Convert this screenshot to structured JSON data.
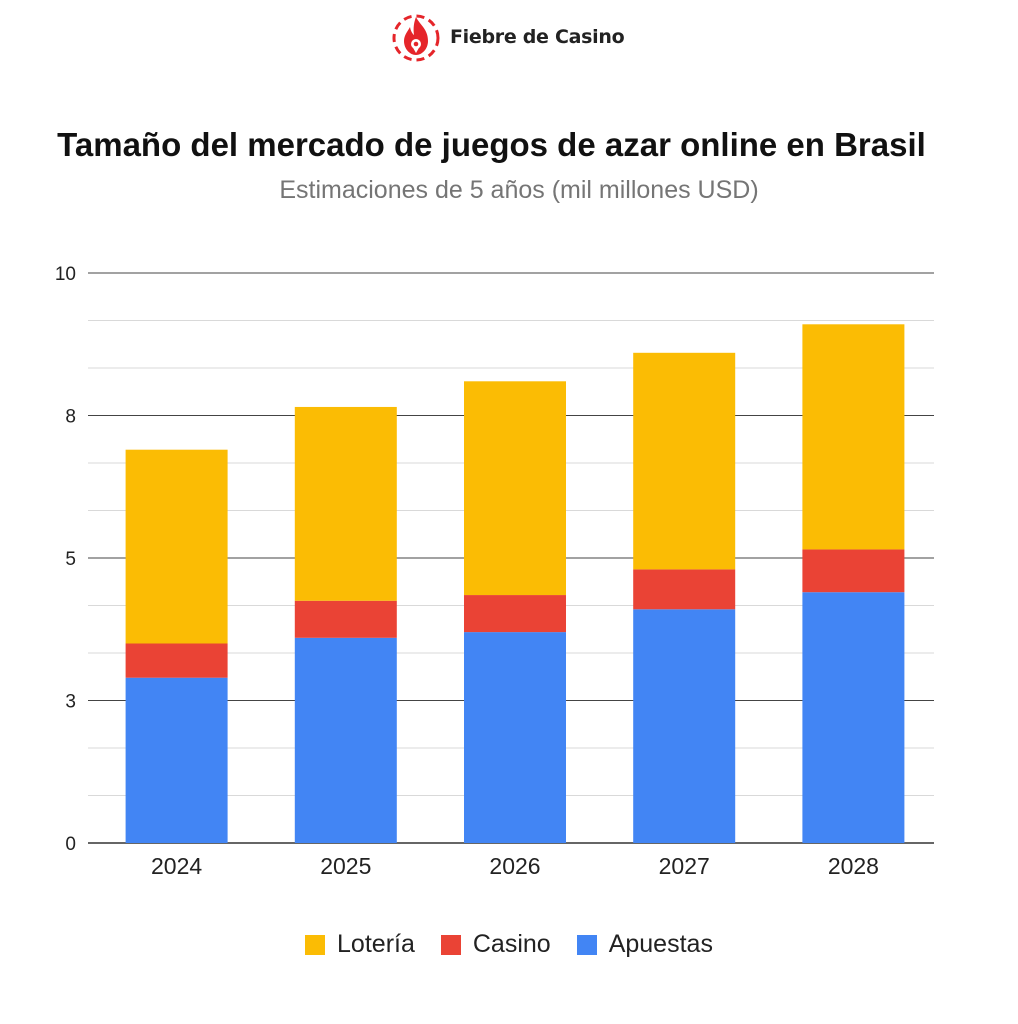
{
  "brand": {
    "name": "Fiebre de Casino",
    "logo_color": "#e5252a"
  },
  "chart_data": {
    "type": "bar",
    "stacked": true,
    "title": "Tamaño del mercado de juegos de azar online en Brasil",
    "subtitle": "Estimaciones de 5 años (mil millones USD)",
    "categories": [
      "2024",
      "2025",
      "2026",
      "2027",
      "2028"
    ],
    "series": [
      {
        "name": "Apuestas",
        "color": "#4285f4",
        "values": [
          2.9,
          3.6,
          3.7,
          4.1,
          4.4
        ]
      },
      {
        "name": "Casino",
        "color": "#ea4335",
        "values": [
          0.6,
          0.65,
          0.65,
          0.7,
          0.75
        ]
      },
      {
        "name": "Lotería",
        "color": "#fbbc04",
        "values": [
          3.4,
          3.4,
          3.75,
          3.8,
          3.95
        ]
      }
    ],
    "legend_order": [
      "Lotería",
      "Casino",
      "Apuestas"
    ],
    "ylim": [
      0,
      10
    ],
    "y_tick_labels": [
      "0",
      "3",
      "5",
      "8",
      "10"
    ],
    "grid": true,
    "legend_position": "bottom"
  }
}
